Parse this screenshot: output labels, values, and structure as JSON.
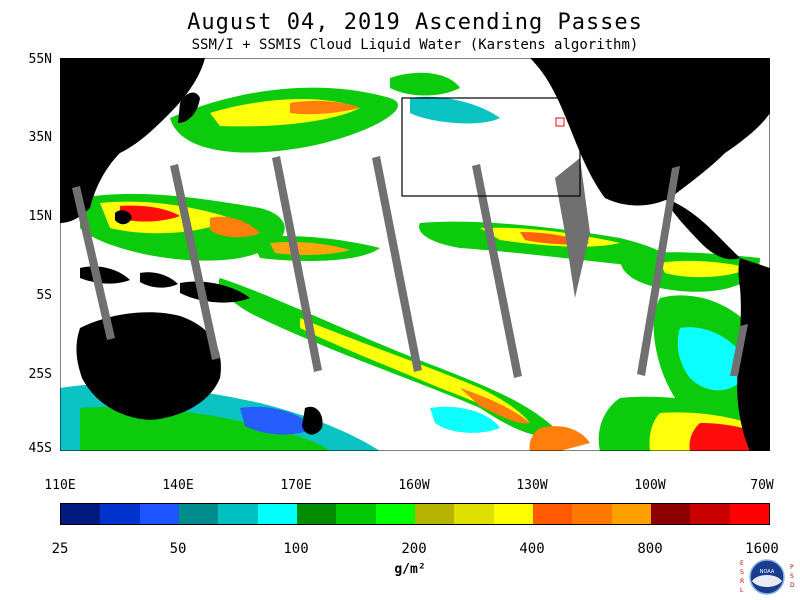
{
  "header": {
    "title": "August 04, 2019  Ascending Passes",
    "subtitle": "SSM/I + SSMIS Cloud Liquid Water (Karstens algorithm)"
  },
  "map": {
    "lat_labels": [
      "55N",
      "35N",
      "15N",
      "5S",
      "25S",
      "45S"
    ],
    "lon_labels": [
      "110E",
      "140E",
      "170E",
      "160W",
      "130W",
      "100W",
      "70W"
    ],
    "background_color": "#ffffff",
    "land_color": "#000000",
    "no_data_swath_color": "#707070"
  },
  "colorbar": {
    "colors": [
      "#001a80",
      "#0033cc",
      "#1a55ff",
      "#008c8c",
      "#00c0c0",
      "#00ffff",
      "#008c00",
      "#00c800",
      "#00ff00",
      "#b4b400",
      "#e0e000",
      "#ffff00",
      "#ff5a00",
      "#ff7800",
      "#ffa000",
      "#8c0000",
      "#c80000",
      "#ff0000"
    ],
    "labels": [
      "25",
      "50",
      "100",
      "200",
      "400",
      "800",
      "1600"
    ],
    "unit": "g/m²"
  },
  "logo": {
    "left_text": "ESRL",
    "right_text": "PSD",
    "center_text": "NOAA"
  }
}
